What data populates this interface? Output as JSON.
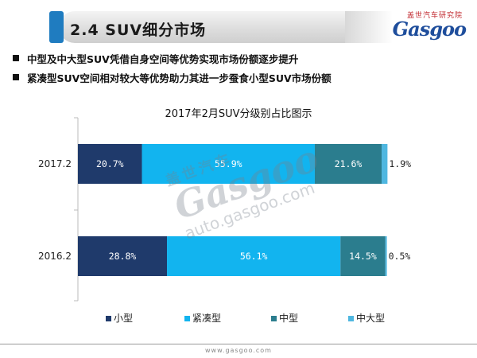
{
  "header": {
    "title": "2.4  SUV细分市场",
    "logo_small": "盖世汽车研究院",
    "logo_main": "Gasgoo",
    "accent_color": "#1f7cc0"
  },
  "bullets": [
    "中型及中大型SUV凭借自身空间等优势实现市场份额逐步提升",
    "紧凑型SUV空间相对较大等优势助力其进一步蚕食小型SUV市场份额"
  ],
  "watermark": {
    "top": "盖世汽车",
    "mid": "Gasgoo",
    "bottom": "auto.gasgoo.com"
  },
  "footer": {
    "url": "www.gasgoo.com"
  },
  "chart_data": {
    "type": "bar",
    "orientation": "horizontal",
    "stacked": true,
    "title": "2017年2月SUV分级别占比图示",
    "categories": [
      "2017.2",
      "2016.2"
    ],
    "series": [
      {
        "name": "小型",
        "values": [
          20.7,
          28.8
        ],
        "labels": [
          "20.7%",
          "28.8%"
        ],
        "color": "#1f3a6b"
      },
      {
        "name": "紧凑型",
        "values": [
          55.9,
          56.1
        ],
        "labels": [
          "55.9%",
          "56.1%"
        ],
        "color": "#12b4ef"
      },
      {
        "name": "中型",
        "values": [
          21.6,
          14.5
        ],
        "labels": [
          "21.6%",
          "14.5%"
        ],
        "color": "#2b7d8e"
      },
      {
        "name": "中大型",
        "values": [
          1.9,
          0.5
        ],
        "labels": [
          "1.9%",
          "0.5%"
        ],
        "color": "#4fb7e0"
      }
    ],
    "xlim": [
      0,
      100
    ],
    "legend_position": "bottom",
    "grid": false
  }
}
